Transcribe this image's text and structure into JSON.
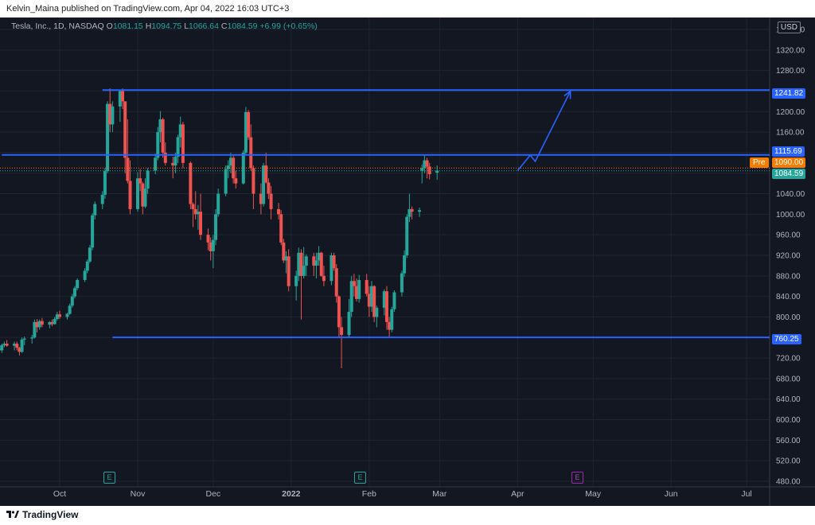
{
  "header": {
    "publisher_text": "Kelvin_Maina published on TradingView.com, Apr 04, 2022 16:03 UTC+3"
  },
  "legend": {
    "symbol": "Tesla, Inc., 1D, NASDAQ",
    "open_label": "O",
    "open": "1081.15",
    "high_label": "H",
    "high": "1094.75",
    "low_label": "L",
    "low": "1066.64",
    "close_label": "C",
    "close": "1084.59",
    "change": "+6.99 (+0.65%)"
  },
  "currency": "USD",
  "price_tags": {
    "line_top": "1241.82",
    "line_mid": "1115.69",
    "pre_label": "Pre",
    "pre_price": "1090.00",
    "last": "1084.59",
    "line_low": "760.25"
  },
  "earnings_markers": [
    {
      "label": "E",
      "date": "2021-10-20"
    },
    {
      "label": "E",
      "date": "2022-01-26"
    },
    {
      "label": "E",
      "date": "2022-04-20"
    }
  ],
  "footer": {
    "brand": "TradingView"
  },
  "colors": {
    "up": "#26a69a",
    "down": "#ef5350",
    "line": "#2962ff",
    "bg": "#131722",
    "pre": "#f57c00",
    "earn_past": "#26a69a",
    "earn_future": "#9c27b0"
  },
  "chart_data": {
    "type": "candlestick",
    "title": "Tesla, Inc., 1D, NASDAQ",
    "ylim": [
      480,
      1360
    ],
    "y_ticks": [
      480,
      520,
      560,
      600,
      640,
      680,
      720,
      760,
      800,
      840,
      880,
      920,
      960,
      1000,
      1040,
      1080,
      1120,
      1160,
      1200,
      1240,
      1280,
      1320,
      1360
    ],
    "x_tick_labels": [
      {
        "label": "Oct",
        "date": "2021-10-01"
      },
      {
        "label": "Nov",
        "date": "2021-11-01"
      },
      {
        "label": "Dec",
        "date": "2021-12-01"
      },
      {
        "label": "2022",
        "date": "2022-01-01"
      },
      {
        "label": "Feb",
        "date": "2022-02-01"
      },
      {
        "label": "Mar",
        "date": "2022-03-01"
      },
      {
        "label": "Apr",
        "date": "2022-04-01"
      },
      {
        "label": "May",
        "date": "2022-05-01"
      },
      {
        "label": "Jun",
        "date": "2022-06-01"
      },
      {
        "label": "Jul",
        "date": "2022-07-01"
      }
    ],
    "horizontal_lines": [
      {
        "price": 1241.82,
        "from": "2021-10-18"
      },
      {
        "price": 1115.69,
        "from": "2021-09-08"
      },
      {
        "price": 760.25,
        "from": "2021-10-22"
      }
    ],
    "projection_arrow": [
      {
        "date": "2022-04-01",
        "price": 1085
      },
      {
        "date": "2022-04-06",
        "price": 1115
      },
      {
        "date": "2022-04-08",
        "price": 1103
      },
      {
        "date": "2022-04-22",
        "price": 1240
      }
    ],
    "first_date": "2021-09-07",
    "candles": [
      [
        738,
        740,
        726,
        735
      ],
      [
        735,
        748,
        730,
        745
      ],
      [
        745,
        752,
        741,
        748
      ],
      [
        748,
        755,
        742,
        744
      ],
      [
        744,
        752,
        735,
        748
      ],
      [
        748,
        752,
        735,
        740
      ],
      [
        740,
        742,
        725,
        732
      ],
      [
        732,
        760,
        730,
        756
      ],
      [
        756,
        762,
        745,
        758
      ],
      [
        758,
        765,
        748,
        760
      ],
      [
        760,
        795,
        758,
        790
      ],
      [
        790,
        796,
        770,
        780
      ],
      [
        780,
        795,
        775,
        792
      ],
      [
        792,
        798,
        780,
        785
      ],
      [
        785,
        792,
        778,
        790
      ],
      [
        790,
        795,
        782,
        786
      ],
      [
        786,
        800,
        785,
        796
      ],
      [
        796,
        810,
        793,
        805
      ],
      [
        805,
        812,
        796,
        800
      ],
      [
        800,
        808,
        795,
        806
      ],
      [
        806,
        826,
        804,
        822
      ],
      [
        822,
        845,
        818,
        840
      ],
      [
        840,
        860,
        836,
        856
      ],
      [
        856,
        875,
        852,
        872
      ],
      [
        872,
        895,
        868,
        890
      ],
      [
        890,
        912,
        885,
        908
      ],
      [
        908,
        940,
        905,
        935
      ],
      [
        935,
        1002,
        930,
        998
      ],
      [
        998,
        1025,
        990,
        1020
      ],
      [
        1020,
        1045,
        1010,
        1038
      ],
      [
        1038,
        1090,
        1030,
        1084
      ],
      [
        1084,
        1220,
        1080,
        1215
      ],
      [
        1215,
        1245,
        1160,
        1175
      ],
      [
        1175,
        1220,
        1160,
        1210
      ],
      [
        1210,
        1243,
        1180,
        1240
      ],
      [
        1240,
        1245,
        1205,
        1220
      ],
      [
        1220,
        1220,
        1080,
        1110
      ],
      [
        1110,
        1185,
        1060,
        1065
      ],
      [
        1065,
        1105,
        1000,
        1010
      ],
      [
        1010,
        1082,
        1005,
        1070
      ],
      [
        1070,
        1088,
        1045,
        1060
      ],
      [
        1060,
        1063,
        1000,
        1015
      ],
      [
        1015,
        1070,
        1012,
        1050
      ],
      [
        1050,
        1090,
        1040,
        1085
      ],
      [
        1085,
        1118,
        1078,
        1110
      ],
      [
        1110,
        1170,
        1105,
        1160
      ],
      [
        1160,
        1201,
        1140,
        1185
      ],
      [
        1185,
        1188,
        1110,
        1120
      ],
      [
        1120,
        1140,
        1095,
        1100
      ],
      [
        1100,
        1112,
        1070,
        1095
      ],
      [
        1095,
        1120,
        1080,
        1112
      ],
      [
        1112,
        1155,
        1100,
        1150
      ],
      [
        1150,
        1190,
        1130,
        1175
      ],
      [
        1175,
        1180,
        1090,
        1100
      ],
      [
        1100,
        1103,
        1010,
        1020
      ],
      [
        1020,
        1023,
        975,
        1010
      ],
      [
        1010,
        1045,
        990,
        1000
      ],
      [
        1000,
        1018,
        970,
        1005
      ],
      [
        1005,
        1040,
        950,
        960
      ],
      [
        960,
        972,
        930,
        945
      ],
      [
        945,
        955,
        910,
        928
      ],
      [
        928,
        960,
        895,
        950
      ],
      [
        950,
        1010,
        940,
        1000
      ],
      [
        1000,
        1050,
        995,
        1040
      ],
      [
        1040,
        1095,
        1035,
        1088
      ],
      [
        1088,
        1105,
        1070,
        1095
      ],
      [
        1095,
        1120,
        1080,
        1110
      ],
      [
        1110,
        1115,
        1060,
        1070
      ],
      [
        1070,
        1085,
        1050,
        1060
      ],
      [
        1060,
        1125,
        1058,
        1120
      ],
      [
        1120,
        1209,
        1115,
        1199
      ],
      [
        1199,
        1203,
        1145,
        1150
      ],
      [
        1150,
        1175,
        1085,
        1090
      ],
      [
        1090,
        1095,
        1010,
        1040
      ],
      [
        1040,
        1060,
        1000,
        1020
      ],
      [
        1020,
        1100,
        1015,
        1095
      ],
      [
        1095,
        1120,
        1060,
        1062
      ],
      [
        1062,
        1070,
        1030,
        1040
      ],
      [
        1040,
        1055,
        990,
        1010
      ],
      [
        1010,
        1022,
        990,
        1000
      ],
      [
        1000,
        1008,
        940,
        945
      ],
      [
        945,
        952,
        905,
        910
      ],
      [
        910,
        928,
        885,
        918
      ],
      [
        918,
        932,
        850,
        860
      ],
      [
        860,
        890,
        832,
        880
      ],
      [
        880,
        935,
        870,
        925
      ],
      [
        925,
        932,
        795,
        880
      ],
      [
        880,
        936,
        875,
        900
      ],
      [
        900,
        922,
        880,
        918
      ],
      [
        918,
        925,
        880,
        900
      ],
      [
        900,
        925,
        875,
        910
      ],
      [
        910,
        938,
        900,
        925
      ],
      [
        925,
        927,
        878,
        880
      ],
      [
        880,
        900,
        860,
        870
      ],
      [
        870,
        925,
        862,
        920
      ],
      [
        920,
        925,
        890,
        895
      ],
      [
        895,
        903,
        828,
        840
      ],
      [
        840,
        842,
        760,
        780
      ],
      [
        780,
        800,
        700,
        765
      ],
      [
        765,
        835,
        760,
        810
      ],
      [
        810,
        880,
        800,
        870
      ],
      [
        870,
        884,
        840,
        860
      ],
      [
        860,
        875,
        830,
        835
      ],
      [
        835,
        882,
        828,
        872
      ],
      [
        872,
        884,
        840,
        845
      ],
      [
        845,
        860,
        800,
        820
      ],
      [
        820,
        870,
        810,
        860
      ],
      [
        860,
        862,
        790,
        800
      ],
      [
        800,
        822,
        780,
        818
      ],
      [
        818,
        854,
        803,
        850
      ],
      [
        850,
        860,
        775,
        790
      ],
      [
        790,
        800,
        760,
        775
      ],
      [
        775,
        820,
        770,
        815
      ],
      [
        815,
        852,
        810,
        848
      ],
      [
        848,
        890,
        840,
        885
      ],
      [
        885,
        930,
        878,
        920
      ],
      [
        920,
        1000,
        915,
        995
      ],
      [
        995,
        1040,
        985,
        1010
      ],
      [
        1010,
        1015,
        990,
        1005
      ],
      [
        1005,
        1013,
        995,
        1008
      ],
      [
        1085,
        1097,
        1060,
        1090
      ],
      [
        1090,
        1115,
        1080,
        1105
      ],
      [
        1105,
        1110,
        1070,
        1093
      ],
      [
        1093,
        1100,
        1068,
        1078
      ],
      [
        1081,
        1095,
        1067,
        1085
      ]
    ]
  }
}
